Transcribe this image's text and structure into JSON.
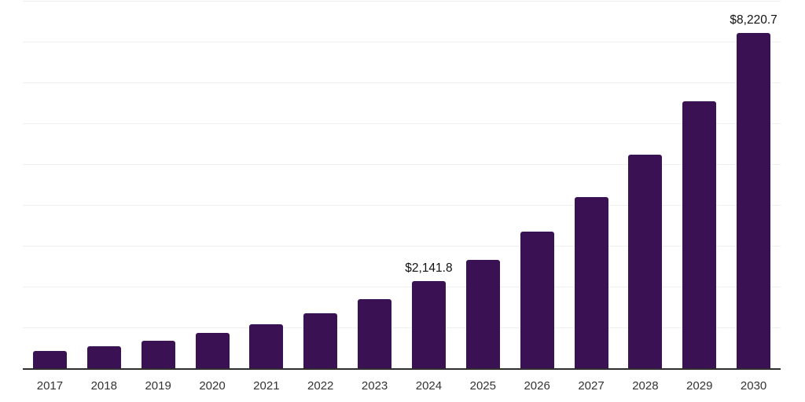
{
  "chart_data": {
    "type": "bar",
    "title": "",
    "xlabel": "",
    "ylabel": "",
    "categories": [
      "2017",
      "2018",
      "2019",
      "2020",
      "2021",
      "2022",
      "2023",
      "2024",
      "2025",
      "2026",
      "2027",
      "2028",
      "2029",
      "2030"
    ],
    "values": [
      425,
      545,
      665,
      865,
      1080,
      1350,
      1695,
      2141.8,
      2650,
      3340,
      4190,
      5240,
      6540,
      8220.7
    ],
    "labeled_points": [
      {
        "category": "2024",
        "label": "$2,141.8",
        "value": 2141.8
      },
      {
        "category": "2030",
        "label": "$8,220.7",
        "value": 8220.7
      }
    ],
    "data_labels": [
      null,
      null,
      null,
      null,
      null,
      null,
      null,
      "$2,141.8",
      null,
      null,
      null,
      null,
      null,
      "$8,220.7"
    ],
    "ylim": [
      0,
      9000
    ],
    "gridline_step": 1000,
    "grid": "horizontal-only",
    "y_tick_labels_visible": false,
    "legend": "none",
    "colors": {
      "bar": "#3A1153",
      "gridline": "#efefef",
      "axis_line": "#2e2e2e",
      "tick_label": "#333333",
      "data_label": "#111111",
      "background": "#ffffff"
    }
  }
}
